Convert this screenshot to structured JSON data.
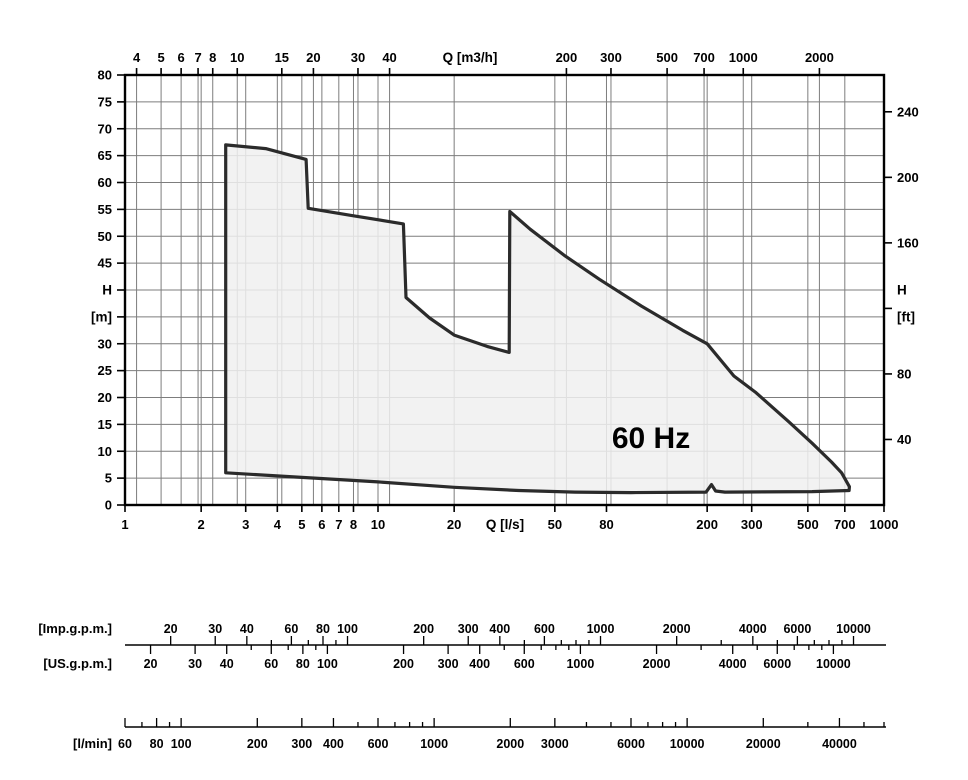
{
  "page": {
    "background": "#ffffff"
  },
  "chart_data": {
    "type": "area",
    "description": "Pump performance range envelope: head H versus flow Q on logarithmic flow scales, with auxiliary flow-unit rulers",
    "frequency_label": "60 Hz",
    "axes": {
      "x_bottom": {
        "label": "Q [l/s]",
        "scale": "log",
        "range": [
          1,
          1000
        ],
        "labeled_ticks": [
          1,
          2,
          3,
          4,
          5,
          6,
          7,
          8,
          10,
          20,
          50,
          80,
          200,
          300,
          500,
          700,
          1000
        ]
      },
      "x_top": {
        "label": "Q [m3/h]",
        "scale": "log",
        "m3h_per_ls": 3.6,
        "labeled_ticks": [
          4,
          5,
          6,
          7,
          8,
          10,
          15,
          20,
          30,
          40,
          200,
          300,
          500,
          700,
          1000,
          2000
        ]
      },
      "y_left": {
        "label_lines": [
          "H",
          "[m]"
        ],
        "scale": "linear",
        "range": [
          0,
          80
        ],
        "tick_step": 5,
        "numeric_labels": [
          0,
          5,
          10,
          15,
          20,
          25,
          30,
          45,
          50,
          55,
          60,
          65,
          70,
          75,
          80
        ],
        "unit_label_rows_m": [
          40,
          35
        ]
      },
      "y_right": {
        "label_lines": [
          "H",
          "[ft]"
        ],
        "ft_per_m": 3.2808,
        "labeled_ticks_ft": [
          40,
          80,
          160,
          200,
          240
        ],
        "tick_marks_ft": [
          40,
          80,
          120,
          160,
          200,
          240
        ],
        "unit_label_rows_m": [
          40,
          35
        ]
      }
    },
    "envelope_points_q_ls_h_m": [
      [
        2.5,
        6.0
      ],
      [
        2.5,
        67.0
      ],
      [
        3.6,
        66.3
      ],
      [
        5.2,
        64.3
      ],
      [
        5.3,
        55.2
      ],
      [
        8.0,
        53.8
      ],
      [
        12.6,
        52.3
      ],
      [
        12.9,
        38.6
      ],
      [
        16.0,
        34.8
      ],
      [
        20.0,
        31.6
      ],
      [
        27.0,
        29.5
      ],
      [
        33.0,
        28.4
      ],
      [
        33.2,
        54.6
      ],
      [
        40.0,
        51.3
      ],
      [
        55.0,
        46.3
      ],
      [
        75.0,
        42.0
      ],
      [
        110.0,
        37.0
      ],
      [
        160.0,
        32.5
      ],
      [
        200.0,
        30.0
      ],
      [
        255.0,
        24.0
      ],
      [
        310.0,
        21.0
      ],
      [
        420.0,
        15.5
      ],
      [
        520.0,
        11.5
      ],
      [
        620.0,
        8.0
      ],
      [
        680.0,
        6.0
      ],
      [
        730.0,
        3.4
      ],
      [
        728.0,
        2.7
      ],
      [
        520.0,
        2.5
      ],
      [
        235.0,
        2.4
      ],
      [
        216.0,
        2.6
      ],
      [
        208.0,
        3.8
      ],
      [
        198.0,
        2.4
      ],
      [
        100.0,
        2.3
      ],
      [
        60.0,
        2.4
      ],
      [
        36.0,
        2.7
      ],
      [
        20.0,
        3.3
      ],
      [
        10.0,
        4.3
      ],
      [
        5.2,
        5.1
      ]
    ],
    "rulers": [
      {
        "name": "[Imp.g.p.m.]",
        "units_per_ls": 13.198,
        "labeled_ticks": [
          20,
          30,
          40,
          60,
          80,
          100,
          200,
          300,
          400,
          600,
          1000,
          2000,
          4000,
          6000,
          10000
        ]
      },
      {
        "name": "[US.g.p.m.]",
        "units_per_ls": 15.85,
        "labeled_ticks": [
          20,
          30,
          40,
          60,
          80,
          100,
          200,
          300,
          400,
          600,
          1000,
          2000,
          4000,
          6000,
          10000
        ]
      },
      {
        "name": "[l/min]",
        "units_per_ls": 60,
        "labeled_ticks": [
          60,
          80,
          100,
          200,
          300,
          400,
          600,
          1000,
          2000,
          3000,
          6000,
          10000,
          20000,
          40000
        ]
      }
    ],
    "colors": {
      "grid": "#7d7d7d",
      "frame": "#000000",
      "envelope_fill": "#f0f0f0",
      "envelope_stroke": "#2b2b2b",
      "text": "#000000"
    }
  }
}
